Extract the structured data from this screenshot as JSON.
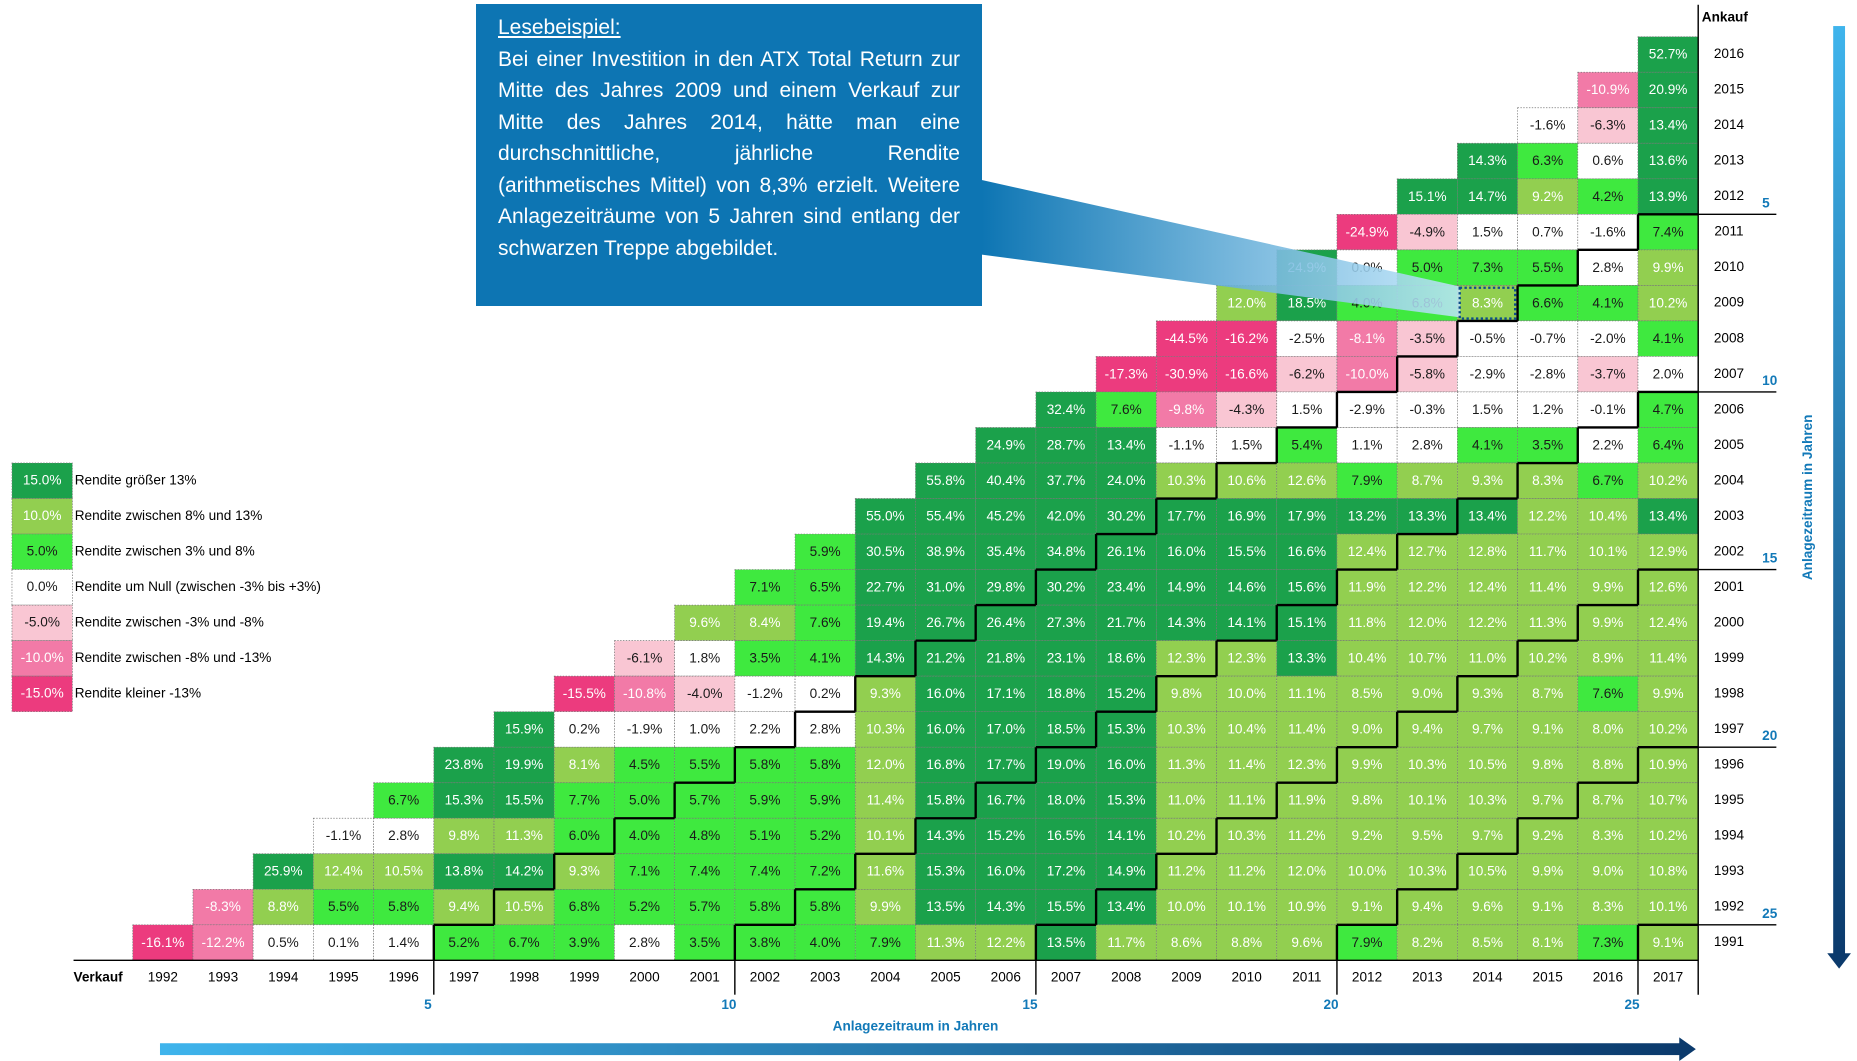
{
  "table": {
    "corner_label": "Ankauf",
    "sell_label": "Verkauf",
    "sell_years": [
      "1992",
      "1993",
      "1994",
      "1995",
      "1996",
      "1997",
      "1998",
      "1999",
      "2000",
      "2001",
      "2002",
      "2003",
      "2004",
      "2005",
      "2006",
      "2007",
      "2008",
      "2009",
      "2010",
      "2011",
      "2012",
      "2013",
      "2014",
      "2015",
      "2016",
      "2017"
    ],
    "rows": [
      {
        "buy": "2016",
        "values": [
          52.7
        ],
        "labels": [
          "52.7%"
        ]
      },
      {
        "buy": "2015",
        "values": [
          -10.9,
          20.9
        ],
        "labels": [
          "-10.9%",
          "20.9%"
        ]
      },
      {
        "buy": "2014",
        "values": [
          -1.6,
          -6.3,
          13.4
        ],
        "labels": [
          "-1.6%",
          "-6.3%",
          "13.4%"
        ]
      },
      {
        "buy": "2013",
        "values": [
          14.3,
          6.3,
          0.6,
          13.6
        ],
        "labels": [
          "14.3%",
          "6.3%",
          "0.6%",
          "13.6%"
        ]
      },
      {
        "buy": "2012",
        "values": [
          15.1,
          14.7,
          9.2,
          4.2,
          13.9
        ],
        "labels": [
          "15.1%",
          "14.7%",
          "9.2%",
          "4.2%",
          "13.9%"
        ]
      },
      {
        "buy": "2011",
        "values": [
          -24.9,
          -4.9,
          1.5,
          0.7,
          -1.6,
          7.4
        ],
        "labels": [
          "-24.9%",
          "-4.9%",
          "1.5%",
          "0.7%",
          "-1.6%",
          "7.4%"
        ]
      },
      {
        "buy": "2010",
        "values": [
          24.9,
          0.0,
          5.0,
          7.3,
          5.5,
          2.8,
          9.9
        ],
        "labels": [
          "24.9%",
          "0.0%",
          "5.0%",
          "7.3%",
          "5.5%",
          "2.8%",
          "9.9%"
        ]
      },
      {
        "buy": "2009",
        "values": [
          12.0,
          18.5,
          4.0,
          6.8,
          8.3,
          6.6,
          4.1,
          10.2
        ],
        "labels": [
          "12.0%",
          "18.5%",
          "4.0%",
          "6.8%",
          "8.3%",
          "6.6%",
          "4.1%",
          "10.2%"
        ]
      },
      {
        "buy": "2008",
        "values": [
          -44.5,
          -16.2,
          -2.5,
          -8.1,
          -3.5,
          -0.5,
          -0.7,
          -2.0,
          4.1
        ],
        "labels": [
          "-44.5%",
          "-16.2%",
          "-2.5%",
          "-8.1%",
          "-3.5%",
          "-0.5%",
          "-0.7%",
          "-2.0%",
          "4.1%"
        ]
      },
      {
        "buy": "2007",
        "values": [
          -17.3,
          -30.9,
          -16.6,
          -6.2,
          -10.0,
          -5.8,
          -2.9,
          -2.8,
          -3.7,
          2.0
        ],
        "labels": [
          "-17.3%",
          "-30.9%",
          "-16.6%",
          "-6.2%",
          "-10.0%",
          "-5.8%",
          "-2.9%",
          "-2.8%",
          "-3.7%",
          "2.0%"
        ]
      },
      {
        "buy": "2006",
        "values": [
          32.4,
          7.6,
          -9.8,
          -4.3,
          1.5,
          -2.9,
          -0.3,
          1.5,
          1.2,
          -0.1,
          4.7
        ],
        "labels": [
          "32.4%",
          "7.6%",
          "-9.8%",
          "-4.3%",
          "1.5%",
          "-2.9%",
          "-0.3%",
          "1.5%",
          "1.2%",
          "-0.1%",
          "4.7%"
        ]
      },
      {
        "buy": "2005",
        "values": [
          24.9,
          28.7,
          13.4,
          -1.1,
          1.5,
          5.4,
          1.1,
          2.8,
          4.1,
          3.5,
          2.2,
          6.4
        ],
        "labels": [
          "24.9%",
          "28.7%",
          "13.4%",
          "-1.1%",
          "1.5%",
          "5.4%",
          "1.1%",
          "2.8%",
          "4.1%",
          "3.5%",
          "2.2%",
          "6.4%"
        ]
      },
      {
        "buy": "2004",
        "values": [
          55.8,
          40.4,
          37.7,
          24.0,
          10.3,
          10.6,
          12.6,
          7.9,
          8.7,
          9.3,
          8.3,
          6.7,
          10.2
        ],
        "labels": [
          "55.8%",
          "40.4%",
          "37.7%",
          "24.0%",
          "10.3%",
          "10.6%",
          "12.6%",
          "7.9%",
          "8.7%",
          "9.3%",
          "8.3%",
          "6.7%",
          "10.2%"
        ]
      },
      {
        "buy": "2003",
        "values": [
          55.0,
          55.4,
          45.2,
          42.0,
          30.2,
          17.7,
          16.9,
          17.9,
          13.2,
          13.3,
          13.4,
          12.2,
          10.4,
          13.4
        ],
        "labels": [
          "55.0%",
          "55.4%",
          "45.2%",
          "42.0%",
          "30.2%",
          "17.7%",
          "16.9%",
          "17.9%",
          "13.2%",
          "13.3%",
          "13.4%",
          "12.2%",
          "10.4%",
          "13.4%"
        ]
      },
      {
        "buy": "2002",
        "values": [
          5.9,
          30.5,
          38.9,
          35.4,
          34.8,
          26.1,
          16.0,
          15.5,
          16.6,
          12.4,
          12.7,
          12.8,
          11.7,
          10.1,
          12.9
        ],
        "labels": [
          "5.9%",
          "30.5%",
          "38.9%",
          "35.4%",
          "34.8%",
          "26.1%",
          "16.0%",
          "15.5%",
          "16.6%",
          "12.4%",
          "12.7%",
          "12.8%",
          "11.7%",
          "10.1%",
          "12.9%"
        ]
      },
      {
        "buy": "2001",
        "values": [
          7.1,
          6.5,
          22.7,
          31.0,
          29.8,
          30.2,
          23.4,
          14.9,
          14.6,
          15.6,
          11.9,
          12.2,
          12.4,
          11.4,
          9.9,
          12.6
        ],
        "labels": [
          "7.1%",
          "6.5%",
          "22.7%",
          "31.0%",
          "29.8%",
          "30.2%",
          "23.4%",
          "14.9%",
          "14.6%",
          "15.6%",
          "11.9%",
          "12.2%",
          "12.4%",
          "11.4%",
          "9.9%",
          "12.6%"
        ]
      },
      {
        "buy": "2000",
        "values": [
          9.6,
          8.4,
          7.6,
          19.4,
          26.7,
          26.4,
          27.3,
          21.7,
          14.3,
          14.1,
          15.1,
          11.8,
          12.0,
          12.2,
          11.3,
          9.9,
          12.4
        ],
        "labels": [
          "9.6%",
          "8.4%",
          "7.6%",
          "19.4%",
          "26.7%",
          "26.4%",
          "27.3%",
          "21.7%",
          "14.3%",
          "14.1%",
          "15.1%",
          "11.8%",
          "12.0%",
          "12.2%",
          "11.3%",
          "9.9%",
          "12.4%"
        ]
      },
      {
        "buy": "1999",
        "values": [
          -6.1,
          1.8,
          3.5,
          4.1,
          14.3,
          21.2,
          21.8,
          23.1,
          18.6,
          12.3,
          12.3,
          13.3,
          10.4,
          10.7,
          11.0,
          10.2,
          8.9,
          11.4
        ],
        "labels": [
          "-6.1%",
          "1.8%",
          "3.5%",
          "4.1%",
          "14.3%",
          "21.2%",
          "21.8%",
          "23.1%",
          "18.6%",
          "12.3%",
          "12.3%",
          "13.3%",
          "10.4%",
          "10.7%",
          "11.0%",
          "10.2%",
          "8.9%",
          "11.4%"
        ]
      },
      {
        "buy": "1998",
        "values": [
          -15.5,
          -10.8,
          -4.0,
          -1.2,
          0.2,
          9.3,
          16.0,
          17.1,
          18.8,
          15.2,
          9.8,
          10.0,
          11.1,
          8.5,
          9.0,
          9.3,
          8.7,
          7.6,
          9.9
        ],
        "labels": [
          "-15.5%",
          "-10.8%",
          "-4.0%",
          "-1.2%",
          "0.2%",
          "9.3%",
          "16.0%",
          "17.1%",
          "18.8%",
          "15.2%",
          "9.8%",
          "10.0%",
          "11.1%",
          "8.5%",
          "9.0%",
          "9.3%",
          "8.7%",
          "7.6%",
          "9.9%"
        ]
      },
      {
        "buy": "1997",
        "values": [
          15.9,
          0.2,
          -1.9,
          1.0,
          2.2,
          2.8,
          10.3,
          16.0,
          17.0,
          18.5,
          15.3,
          10.3,
          10.4,
          11.4,
          9.0,
          9.4,
          9.7,
          9.1,
          8.0,
          10.2
        ],
        "labels": [
          "15.9%",
          "0.2%",
          "-1.9%",
          "1.0%",
          "2.2%",
          "2.8%",
          "10.3%",
          "16.0%",
          "17.0%",
          "18.5%",
          "15.3%",
          "10.3%",
          "10.4%",
          "11.4%",
          "9.0%",
          "9.4%",
          "9.7%",
          "9.1%",
          "8.0%",
          "10.2%"
        ]
      },
      {
        "buy": "1996",
        "values": [
          23.8,
          19.9,
          8.1,
          4.5,
          5.5,
          5.8,
          5.8,
          12.0,
          16.8,
          17.7,
          19.0,
          16.0,
          11.3,
          11.4,
          12.3,
          9.9,
          10.3,
          10.5,
          9.8,
          8.8,
          10.9
        ],
        "labels": [
          "23.8%",
          "19.9%",
          "8.1%",
          "4.5%",
          "5.5%",
          "5.8%",
          "5.8%",
          "12.0%",
          "16.8%",
          "17.7%",
          "19.0%",
          "16.0%",
          "11.3%",
          "11.4%",
          "12.3%",
          "9.9%",
          "10.3%",
          "10.5%",
          "9.8%",
          "8.8%",
          "10.9%"
        ]
      },
      {
        "buy": "1995",
        "values": [
          6.7,
          15.3,
          15.5,
          7.7,
          5.0,
          5.7,
          5.9,
          5.9,
          11.4,
          15.8,
          16.7,
          18.0,
          15.3,
          11.0,
          11.1,
          11.9,
          9.8,
          10.1,
          10.3,
          9.7,
          8.7,
          10.7
        ],
        "labels": [
          "6.7%",
          "15.3%",
          "15.5%",
          "7.7%",
          "5.0%",
          "5.7%",
          "5.9%",
          "5.9%",
          "11.4%",
          "15.8%",
          "16.7%",
          "18.0%",
          "15.3%",
          "11.0%",
          "11.1%",
          "11.9%",
          "9.8%",
          "10.1%",
          "10.3%",
          "9.7%",
          "8.7%",
          "10.7%"
        ]
      },
      {
        "buy": "1994",
        "values": [
          -1.1,
          2.8,
          9.8,
          11.3,
          6.0,
          4.0,
          4.8,
          5.1,
          5.2,
          10.1,
          14.3,
          15.2,
          16.5,
          14.1,
          10.2,
          10.3,
          11.2,
          9.2,
          9.5,
          9.7,
          9.2,
          8.3,
          10.2
        ],
        "labels": [
          "-1.1%",
          "2.8%",
          "9.8%",
          "11.3%",
          "6.0%",
          "4.0%",
          "4.8%",
          "5.1%",
          "5.2%",
          "10.1%",
          "14.3%",
          "15.2%",
          "16.5%",
          "14.1%",
          "10.2%",
          "10.3%",
          "11.2%",
          "9.2%",
          "9.5%",
          "9.7%",
          "9.2%",
          "8.3%",
          "10.2%"
        ]
      },
      {
        "buy": "1993",
        "values": [
          25.9,
          12.4,
          10.5,
          13.8,
          14.2,
          9.3,
          7.1,
          7.4,
          7.4,
          7.2,
          11.6,
          15.3,
          16.0,
          17.2,
          14.9,
          11.2,
          11.2,
          12.0,
          10.0,
          10.3,
          10.5,
          9.9,
          9.0,
          10.8
        ],
        "labels": [
          "25.9%",
          "12.4%",
          "10.5%",
          "13.8%",
          "14.2%",
          "9.3%",
          "7.1%",
          "7.4%",
          "7.4%",
          "7.2%",
          "11.6%",
          "15.3%",
          "16.0%",
          "17.2%",
          "14.9%",
          "11.2%",
          "11.2%",
          "12.0%",
          "10.0%",
          "10.3%",
          "10.5%",
          "9.9%",
          "9.0%",
          "10.8%"
        ]
      },
      {
        "buy": "1992",
        "values": [
          -8.3,
          8.8,
          5.5,
          5.8,
          9.4,
          10.5,
          6.8,
          5.2,
          5.7,
          5.8,
          5.8,
          9.9,
          13.5,
          14.3,
          15.5,
          13.4,
          10.0,
          10.1,
          10.9,
          9.1,
          9.4,
          9.6,
          9.1,
          8.3,
          10.1
        ],
        "labels": [
          "-8.3%",
          "8.8%",
          "5.5%",
          "5.8%",
          "9.4%",
          "10.5%",
          "6.8%",
          "5.2%",
          "5.7%",
          "5.8%",
          "5.8%",
          "9.9%",
          "13.5%",
          "14.3%",
          "15.5%",
          "13.4%",
          "10.0%",
          "10.1%",
          "10.9%",
          "9.1%",
          "9.4%",
          "9.6%",
          "9.1%",
          "8.3%",
          "10.1%"
        ]
      },
      {
        "buy": "1991",
        "values": [
          -16.1,
          -12.2,
          0.5,
          0.1,
          1.4,
          5.2,
          6.7,
          3.9,
          2.8,
          3.5,
          3.8,
          4.0,
          7.9,
          11.3,
          12.2,
          13.5,
          11.7,
          8.6,
          8.8,
          9.6,
          7.9,
          8.2,
          8.5,
          8.1,
          7.3,
          9.1
        ],
        "labels": [
          "-16.1%",
          "-12.2%",
          "0.5%",
          "0.1%",
          "1.4%",
          "5.2%",
          "6.7%",
          "3.9%",
          "2.8%",
          "3.5%",
          "3.8%",
          "4.0%",
          "7.9%",
          "11.3%",
          "12.2%",
          "13.5%",
          "11.7%",
          "8.6%",
          "8.8%",
          "9.6%",
          "7.9%",
          "8.2%",
          "8.5%",
          "8.1%",
          "7.3%",
          "9.1%"
        ]
      }
    ],
    "periods": {
      "title": "Anlagezeitraum in Jahren",
      "marks": [
        5,
        10,
        15,
        20,
        25
      ]
    },
    "legend": [
      {
        "value": 15.0,
        "label": "15.0%",
        "text": "Rendite größer 13%",
        "min": 13,
        "color": "#1ba14b",
        "text_color": "#ffffff"
      },
      {
        "value": 10.0,
        "label": "10.0%",
        "text": "Rendite zwischen 8% und 13%",
        "min": 8,
        "color": "#92cf50",
        "text_color": "#ffffff"
      },
      {
        "value": 5.0,
        "label": "5.0%",
        "text": "Rendite zwischen 3% und 8%",
        "min": 3,
        "color": "#3fe93f",
        "text_color": "#1a1a1a"
      },
      {
        "value": 0.0,
        "label": "0.0%",
        "text": "Rendite um Null (zwischen -3% bis +3%)",
        "min": -3,
        "color": "#ffffff",
        "text_color": "#1a1a1a"
      },
      {
        "value": -5.0,
        "label": "-5.0%",
        "text": "Rendite zwischen -3% und -8%",
        "min": -8,
        "color": "#f9c6d3",
        "text_color": "#1a1a1a"
      },
      {
        "value": -10.0,
        "label": "-10.0%",
        "text": "Rendite zwischen -8% und -13%",
        "min": -13,
        "color": "#f27aa7",
        "text_color": "#ffffff"
      },
      {
        "value": -15.0,
        "label": "-15.0%",
        "text": "Rendite kleiner -13%",
        "color": "#ec3b7e",
        "text_color": "#ffffff"
      }
    ],
    "callout": {
      "title": "Lesebeispiel:",
      "text": "Bei einer Investition in den ATX Total Return zur Mitte des Jahres 2009 und einem Verkauf zur Mitte des Jahres 2014, hätte man eine durchschnittliche, jährliche Rendite (arithmetisches Mittel) von 8,3% erzielt. Weitere Anlagezeiträume von 5 Jahren sind entlang der schwarzen Treppe abgebildet."
    }
  }
}
